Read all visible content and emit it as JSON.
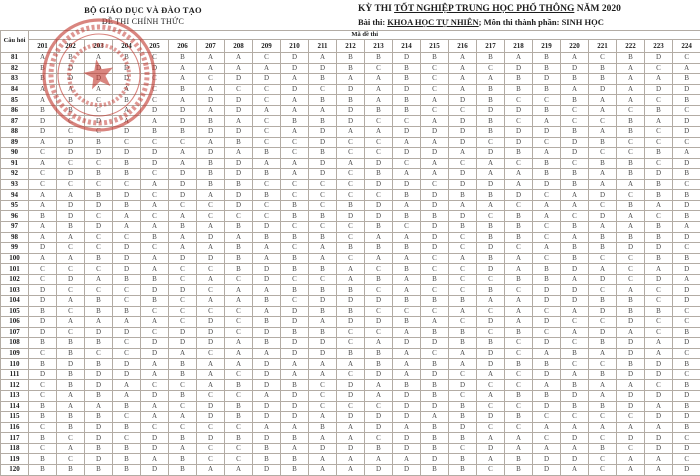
{
  "header": {
    "ministry": "BỘ GIÁO DỤC VÀ ĐÀO TẠO",
    "exam_copy": "ĐỀ THI CHÍNH THỨC",
    "title_pre": "KỲ THI ",
    "title_underlined": "TỐT NGHIỆP TRUNG HỌC PHỔ THÔNG",
    "title_post": " NĂM 2020",
    "subtitle_label1": "Bài thi: ",
    "subtitle_subject": "KHOA HỌC TỰ NHIÊN",
    "subtitle_label2": "; Môn thi thành phần: ",
    "subtitle_component": "SINH HỌC"
  },
  "colors": {
    "stamp": "#c23b32",
    "grid": "#b3aca4",
    "answer_text": "#4a4a4a"
  },
  "table": {
    "question_col_header": "Câu hỏi",
    "code_group_header": "Mã đề thi",
    "codes": [
      "201",
      "202",
      "203",
      "204",
      "205",
      "206",
      "207",
      "208",
      "209",
      "210",
      "211",
      "212",
      "213",
      "214",
      "215",
      "216",
      "217",
      "218",
      "219",
      "220",
      "221",
      "222",
      "223",
      "224"
    ],
    "rows": [
      {
        "q": "81",
        "a": [
          "A",
          "B",
          "A",
          "B",
          "C",
          "B",
          "A",
          "A",
          "C",
          "D",
          "A",
          "B",
          "B",
          "D",
          "B",
          "A",
          "B",
          "A",
          "B",
          "A",
          "C",
          "B",
          "D",
          "C"
        ]
      },
      {
        "q": "82",
        "a": [
          "B",
          "D",
          "D",
          "D",
          "D",
          "A",
          "A",
          "A",
          "A",
          "D",
          "D",
          "B",
          "C",
          "B",
          "C",
          "A",
          "C",
          "D",
          "B",
          "D",
          "B",
          "A",
          "C",
          "A"
        ]
      },
      {
        "q": "83",
        "a": [
          "B",
          "D",
          "D",
          "D",
          "C",
          "A",
          "C",
          "D",
          "D",
          "A",
          "B",
          "A",
          "A",
          "B",
          "C",
          "A",
          "A",
          "B",
          "D",
          "B",
          "B",
          "A",
          "A",
          "B"
        ]
      },
      {
        "q": "84",
        "a": [
          "A",
          "A",
          "A",
          "A",
          "C",
          "B",
          "A",
          "C",
          "C",
          "D",
          "C",
          "D",
          "A",
          "D",
          "C",
          "A",
          "B",
          "B",
          "B",
          "A",
          "D",
          "A",
          "D",
          "D"
        ]
      },
      {
        "q": "85",
        "a": [
          "A",
          "B",
          "C",
          "B",
          "C",
          "A",
          "D",
          "D",
          "C",
          "A",
          "B",
          "B",
          "A",
          "B",
          "A",
          "D",
          "B",
          "C",
          "C",
          "B",
          "A",
          "A",
          "C",
          "B"
        ]
      },
      {
        "q": "86",
        "a": [
          "B",
          "B",
          "C",
          "A",
          "D",
          "D",
          "A",
          "D",
          "A",
          "A",
          "A",
          "D",
          "B",
          "B",
          "C",
          "C",
          "D",
          "D",
          "B",
          "C",
          "A",
          "C",
          "B",
          "C"
        ]
      },
      {
        "q": "87",
        "a": [
          "D",
          "C",
          "D",
          "A",
          "A",
          "D",
          "B",
          "A",
          "C",
          "B",
          "B",
          "D",
          "C",
          "C",
          "A",
          "D",
          "B",
          "C",
          "A",
          "C",
          "C",
          "B",
          "A",
          "D"
        ]
      },
      {
        "q": "88",
        "a": [
          "D",
          "C",
          "C",
          "D",
          "B",
          "B",
          "D",
          "D",
          "C",
          "A",
          "D",
          "A",
          "A",
          "D",
          "D",
          "D",
          "B",
          "D",
          "D",
          "B",
          "A",
          "B",
          "C",
          "D"
        ]
      },
      {
        "q": "89",
        "a": [
          "A",
          "D",
          "B",
          "C",
          "C",
          "C",
          "A",
          "B",
          "C",
          "C",
          "D",
          "C",
          "C",
          "A",
          "A",
          "D",
          "C",
          "D",
          "C",
          "D",
          "B",
          "C",
          "C",
          "C"
        ]
      },
      {
        "q": "90",
        "a": [
          "C",
          "D",
          "D",
          "D",
          "D",
          "A",
          "D",
          "A",
          "B",
          "C",
          "B",
          "C",
          "C",
          "D",
          "D",
          "A",
          "D",
          "B",
          "A",
          "D",
          "C",
          "C",
          "B",
          "A"
        ]
      },
      {
        "q": "91",
        "a": [
          "A",
          "C",
          "C",
          "B",
          "D",
          "A",
          "B",
          "D",
          "A",
          "A",
          "D",
          "A",
          "D",
          "C",
          "A",
          "C",
          "A",
          "C",
          "B",
          "C",
          "B",
          "B",
          "C",
          "D"
        ]
      },
      {
        "q": "92",
        "a": [
          "C",
          "D",
          "B",
          "B",
          "C",
          "D",
          "B",
          "D",
          "B",
          "A",
          "D",
          "C",
          "B",
          "A",
          "A",
          "D",
          "A",
          "A",
          "B",
          "B",
          "A",
          "B",
          "D",
          "B"
        ]
      },
      {
        "q": "93",
        "a": [
          "C",
          "C",
          "C",
          "C",
          "A",
          "D",
          "B",
          "B",
          "C",
          "C",
          "C",
          "C",
          "D",
          "D",
          "C",
          "D",
          "D",
          "A",
          "D",
          "B",
          "A",
          "A",
          "B",
          "C"
        ]
      },
      {
        "q": "94",
        "a": [
          "A",
          "A",
          "B",
          "D",
          "C",
          "D",
          "A",
          "D",
          "B",
          "C",
          "C",
          "C",
          "C",
          "B",
          "D",
          "B",
          "B",
          "D",
          "C",
          "A",
          "D",
          "C",
          "B",
          "B"
        ]
      },
      {
        "q": "95",
        "a": [
          "A",
          "D",
          "D",
          "B",
          "A",
          "C",
          "C",
          "D",
          "C",
          "B",
          "C",
          "B",
          "D",
          "A",
          "D",
          "A",
          "A",
          "C",
          "A",
          "A",
          "C",
          "B",
          "A",
          "D"
        ]
      },
      {
        "q": "96",
        "a": [
          "B",
          "D",
          "C",
          "A",
          "C",
          "A",
          "C",
          "C",
          "C",
          "B",
          "B",
          "D",
          "D",
          "B",
          "B",
          "D",
          "C",
          "B",
          "A",
          "C",
          "D",
          "A",
          "C",
          "B"
        ]
      },
      {
        "q": "97",
        "a": [
          "A",
          "B",
          "D",
          "A",
          "A",
          "B",
          "A",
          "B",
          "D",
          "C",
          "C",
          "C",
          "B",
          "C",
          "D",
          "B",
          "B",
          "B",
          "C",
          "B",
          "A",
          "A",
          "B",
          "A"
        ]
      },
      {
        "q": "98",
        "a": [
          "A",
          "A",
          "C",
          "C",
          "B",
          "A",
          "D",
          "A",
          "B",
          "B",
          "B",
          "C",
          "A",
          "A",
          "D",
          "C",
          "B",
          "B",
          "C",
          "A",
          "B",
          "B",
          "B",
          "D"
        ]
      },
      {
        "q": "99",
        "a": [
          "D",
          "C",
          "C",
          "D",
          "C",
          "A",
          "A",
          "B",
          "A",
          "C",
          "A",
          "B",
          "B",
          "B",
          "D",
          "C",
          "D",
          "C",
          "A",
          "B",
          "B",
          "D",
          "D",
          "C"
        ]
      },
      {
        "q": "100",
        "a": [
          "A",
          "A",
          "B",
          "D",
          "A",
          "D",
          "D",
          "B",
          "A",
          "B",
          "A",
          "C",
          "A",
          "A",
          "C",
          "A",
          "B",
          "A",
          "C",
          "B",
          "C",
          "C",
          "B",
          "B"
        ]
      },
      {
        "q": "101",
        "a": [
          "C",
          "C",
          "C",
          "D",
          "A",
          "C",
          "C",
          "B",
          "D",
          "B",
          "B",
          "A",
          "C",
          "B",
          "C",
          "C",
          "D",
          "A",
          "B",
          "D",
          "A",
          "C",
          "A",
          "D"
        ]
      },
      {
        "q": "102",
        "a": [
          "C",
          "D",
          "A",
          "B",
          "B",
          "C",
          "A",
          "C",
          "D",
          "C",
          "C",
          "A",
          "B",
          "A",
          "B",
          "C",
          "C",
          "B",
          "B",
          "A",
          "D",
          "C",
          "D",
          "A"
        ]
      },
      {
        "q": "103",
        "a": [
          "D",
          "C",
          "C",
          "C",
          "D",
          "D",
          "C",
          "A",
          "A",
          "B",
          "B",
          "B",
          "C",
          "A",
          "C",
          "C",
          "B",
          "C",
          "D",
          "D",
          "C",
          "A",
          "C",
          "D"
        ]
      },
      {
        "q": "104",
        "a": [
          "D",
          "A",
          "B",
          "C",
          "B",
          "C",
          "A",
          "A",
          "B",
          "C",
          "D",
          "D",
          "D",
          "B",
          "B",
          "B",
          "A",
          "A",
          "D",
          "D",
          "B",
          "B",
          "C",
          "D"
        ]
      },
      {
        "q": "105",
        "a": [
          "B",
          "C",
          "B",
          "B",
          "C",
          "C",
          "C",
          "C",
          "A",
          "D",
          "B",
          "B",
          "C",
          "C",
          "C",
          "A",
          "C",
          "A",
          "C",
          "A",
          "D",
          "B",
          "B",
          "C"
        ]
      },
      {
        "q": "106",
        "a": [
          "D",
          "A",
          "A",
          "A",
          "A",
          "C",
          "D",
          "C",
          "B",
          "D",
          "A",
          "D",
          "D",
          "B",
          "A",
          "C",
          "D",
          "A",
          "D",
          "C",
          "C",
          "D",
          "C",
          "C"
        ]
      },
      {
        "q": "107",
        "a": [
          "D",
          "C",
          "D",
          "D",
          "C",
          "D",
          "D",
          "C",
          "D",
          "B",
          "B",
          "C",
          "C",
          "A",
          "B",
          "B",
          "C",
          "B",
          "C",
          "A",
          "D",
          "A",
          "C",
          "B"
        ]
      },
      {
        "q": "108",
        "a": [
          "B",
          "B",
          "B",
          "C",
          "D",
          "D",
          "D",
          "A",
          "B",
          "D",
          "D",
          "C",
          "A",
          "D",
          "D",
          "B",
          "B",
          "C",
          "D",
          "C",
          "B",
          "D",
          "A",
          "D"
        ]
      },
      {
        "q": "109",
        "a": [
          "C",
          "B",
          "C",
          "C",
          "D",
          "A",
          "C",
          "A",
          "A",
          "D",
          "D",
          "B",
          "B",
          "A",
          "C",
          "A",
          "D",
          "C",
          "A",
          "B",
          "A",
          "D",
          "A",
          "C"
        ]
      },
      {
        "q": "110",
        "a": [
          "B",
          "D",
          "B",
          "D",
          "A",
          "B",
          "A",
          "A",
          "D",
          "A",
          "A",
          "A",
          "B",
          "A",
          "B",
          "A",
          "D",
          "B",
          "B",
          "C",
          "C",
          "B",
          "D",
          "B"
        ]
      },
      {
        "q": "111",
        "a": [
          "D",
          "B",
          "D",
          "D",
          "A",
          "B",
          "A",
          "C",
          "D",
          "A",
          "A",
          "C",
          "D",
          "A",
          "D",
          "C",
          "A",
          "C",
          "D",
          "A",
          "B",
          "D",
          "D",
          "C"
        ]
      },
      {
        "q": "112",
        "a": [
          "C",
          "B",
          "D",
          "A",
          "C",
          "C",
          "A",
          "B",
          "D",
          "B",
          "C",
          "D",
          "A",
          "B",
          "B",
          "D",
          "C",
          "C",
          "A",
          "B",
          "A",
          "A",
          "C",
          "B"
        ]
      },
      {
        "q": "113",
        "a": [
          "C",
          "A",
          "B",
          "A",
          "D",
          "B",
          "C",
          "C",
          "A",
          "D",
          "C",
          "D",
          "A",
          "D",
          "B",
          "C",
          "A",
          "B",
          "B",
          "D",
          "A",
          "D",
          "D",
          "D"
        ]
      },
      {
        "q": "114",
        "a": [
          "B",
          "A",
          "A",
          "B",
          "A",
          "C",
          "D",
          "B",
          "D",
          "D",
          "C",
          "C",
          "C",
          "D",
          "D",
          "B",
          "C",
          "C",
          "D",
          "B",
          "B",
          "D",
          "A",
          "B"
        ]
      },
      {
        "q": "115",
        "a": [
          "B",
          "B",
          "B",
          "C",
          "A",
          "A",
          "D",
          "B",
          "D",
          "D",
          "A",
          "D",
          "D",
          "D",
          "A",
          "B",
          "D",
          "B",
          "C",
          "C",
          "C",
          "C",
          "D",
          "D"
        ]
      },
      {
        "q": "116",
        "a": [
          "C",
          "B",
          "D",
          "B",
          "C",
          "C",
          "C",
          "C",
          "A",
          "A",
          "B",
          "A",
          "D",
          "A",
          "B",
          "D",
          "C",
          "C",
          "A",
          "A",
          "A",
          "A",
          "A",
          "B"
        ]
      },
      {
        "q": "117",
        "a": [
          "B",
          "C",
          "D",
          "C",
          "D",
          "B",
          "D",
          "B",
          "D",
          "B",
          "A",
          "A",
          "C",
          "D",
          "B",
          "B",
          "A",
          "A",
          "C",
          "D",
          "C",
          "D",
          "D",
          "C"
        ]
      },
      {
        "q": "118",
        "a": [
          "C",
          "A",
          "B",
          "B",
          "D",
          "A",
          "C",
          "C",
          "B",
          "A",
          "D",
          "D",
          "B",
          "D",
          "B",
          "C",
          "D",
          "A",
          "A",
          "A",
          "B",
          "C",
          "D",
          "D"
        ]
      },
      {
        "q": "119",
        "a": [
          "B",
          "C",
          "D",
          "B",
          "A",
          "B",
          "C",
          "C",
          "B",
          "B",
          "A",
          "A",
          "A",
          "A",
          "D",
          "B",
          "A",
          "B",
          "D",
          "D",
          "C",
          "A",
          "A",
          "C"
        ]
      },
      {
        "q": "120",
        "a": [
          "B",
          "B",
          "B",
          "B",
          "D",
          "B",
          "A",
          "A",
          "D",
          "B",
          "A",
          "A",
          "D",
          "D",
          "B",
          "B",
          "C",
          "B",
          "D",
          "A",
          "C",
          "A",
          "A",
          "D"
        ]
      }
    ]
  }
}
